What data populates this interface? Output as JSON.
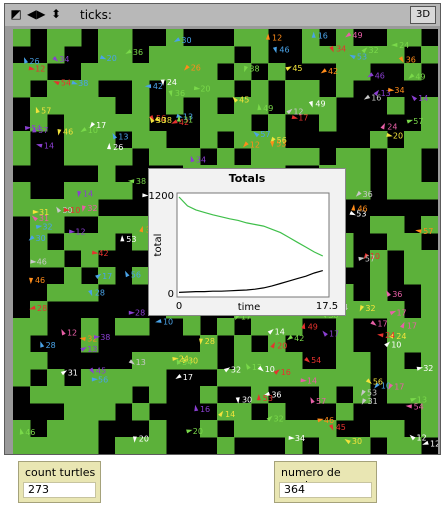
{
  "toolbar": {
    "ticks_label": "ticks:",
    "three_d_label": "3D",
    "icons": [
      "resize-icon",
      "arrows-horizontal-icon",
      "arrows-vertical-icon"
    ]
  },
  "world": {
    "colors": {
      "patch_green": "#5cb13a",
      "patch_black": "#000000"
    },
    "visible_numbers": [
      "45",
      "24",
      "28",
      "14",
      "49",
      "34",
      "38",
      "26",
      "36",
      "31",
      "32",
      "16",
      "56",
      "12",
      "54",
      "53",
      "17",
      "13",
      "42",
      "30",
      "57",
      "20",
      "46",
      "10"
    ]
  },
  "plot": {
    "title": "Totals",
    "y_axis_label": "total",
    "x_axis_label": "time",
    "y_min_label": "0",
    "y_max_label": "1200",
    "x_min_label": "0",
    "x_max_label": "17.5"
  },
  "chart_data": {
    "type": "line",
    "title": "Totals",
    "xlabel": "time",
    "ylabel": "total",
    "xlim": [
      0,
      17.5
    ],
    "ylim": [
      0,
      1200
    ],
    "series": [
      {
        "color": "#3fbf4a",
        "x": [
          0,
          1,
          2,
          3,
          4,
          5,
          6,
          7,
          8,
          9,
          10,
          11,
          12,
          13,
          14,
          15,
          16,
          17
        ],
        "y": [
          1200,
          1090,
          1040,
          1010,
          980,
          955,
          930,
          910,
          880,
          860,
          840,
          800,
          760,
          700,
          640,
          580,
          520,
          470
        ]
      },
      {
        "color": "#000000",
        "x": [
          0,
          1,
          2,
          3,
          4,
          5,
          6,
          7,
          8,
          9,
          10,
          11,
          12,
          13,
          14,
          15,
          16,
          17
        ],
        "y": [
          20,
          25,
          30,
          30,
          35,
          35,
          40,
          45,
          50,
          60,
          75,
          100,
          130,
          160,
          190,
          220,
          260,
          290
        ]
      }
    ]
  },
  "monitors": [
    {
      "label": "count turtles",
      "value": "273"
    },
    {
      "label": "numero de parches",
      "value": "364"
    }
  ]
}
